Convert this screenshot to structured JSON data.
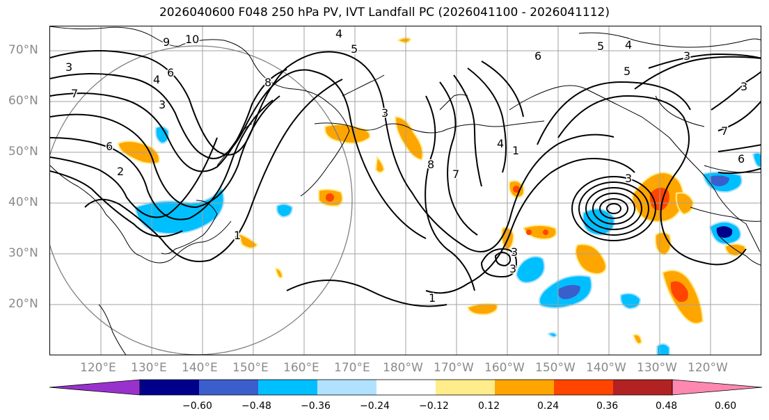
{
  "title": "2026040600 F048 250 hPa PV, IVT Landfall PC (2026041100 - 2026041112)",
  "lat_labels": [
    "70°N",
    "60°N",
    "50°N",
    "40°N",
    "30°N",
    "20°N"
  ],
  "lon_labels": [
    "120°E",
    "130°E",
    "140°E",
    "150°E",
    "160°E",
    "170°E",
    "180°W",
    "170°W",
    "160°W",
    "150°W",
    "140°W",
    "130°W",
    "120°W"
  ],
  "colorbar": {
    "ticks": [
      "−0.60",
      "−0.48",
      "−0.36",
      "−0.24",
      "−0.12",
      "0.12",
      "0.24",
      "0.36",
      "0.48",
      "0.60"
    ],
    "colors": [
      "#9932cc",
      "#00008b",
      "#3a5fcd",
      "#00bfff",
      "#b0e2ff",
      "#ffffff",
      "#ffec8b",
      "#ffa500",
      "#ff4500",
      "#b22222",
      "#ff88b0"
    ]
  },
  "contour_labels": [
    "3",
    "7",
    "6",
    "2",
    "9",
    "10",
    "4",
    "6",
    "3",
    "8",
    "4",
    "5",
    "8",
    "3",
    "7",
    "4",
    "1",
    "6",
    "5",
    "4",
    "3",
    "5",
    "7",
    "3",
    "6",
    "3",
    "3",
    "1",
    "3",
    "1"
  ],
  "colors": {
    "pos_light": "#ffec8b",
    "pos_mid": "#ffa500",
    "pos_strong": "#ff4500",
    "neg_light": "#b0e2ff",
    "neg_mid": "#00bfff",
    "neg_strong": "#3a5fcd",
    "neg_max": "#00008b"
  }
}
